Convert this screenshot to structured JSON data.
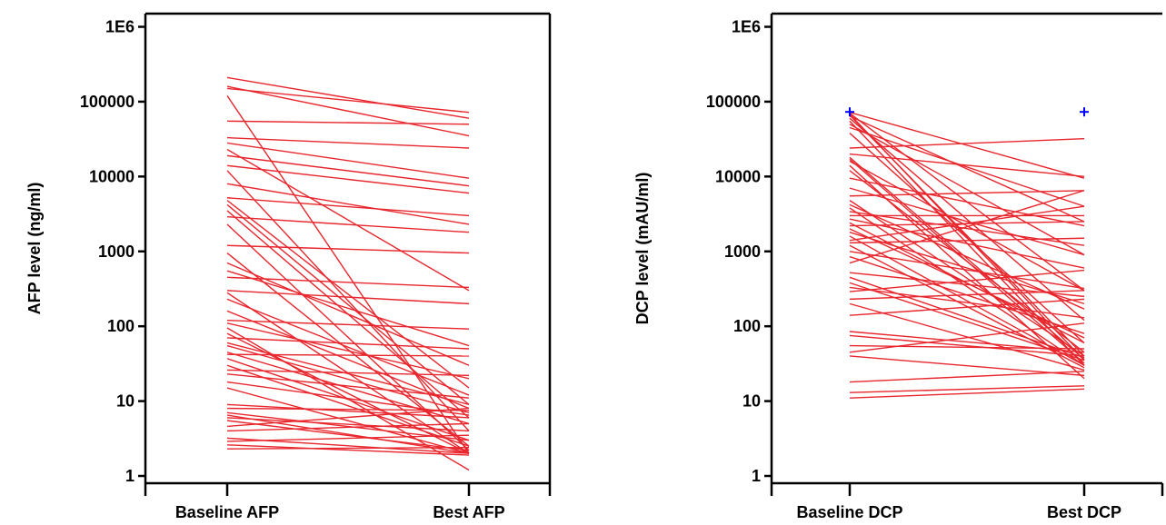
{
  "chart_data": [
    {
      "type": "line",
      "title": "",
      "xlabel": "",
      "ylabel": "AFP level (ng/ml)",
      "categories": [
        "Baseline AFP",
        "Best AFP"
      ],
      "yscale": "log",
      "ylim": [
        0.8,
        1500000
      ],
      "yticks": [
        1,
        10,
        100,
        1000,
        10000,
        100000,
        1000000
      ],
      "ytick_labels": [
        "1",
        "10",
        "100",
        "1000",
        "10000",
        "100000",
        "1E6"
      ],
      "grid": false,
      "line_color": "#e8262d",
      "pairs": [
        [
          210000,
          60000
        ],
        [
          160000,
          35000
        ],
        [
          150000,
          72000
        ],
        [
          120000,
          2.0
        ],
        [
          55000,
          50000
        ],
        [
          33000,
          24000
        ],
        [
          28000,
          9500
        ],
        [
          23000,
          300
        ],
        [
          19000,
          7500
        ],
        [
          14000,
          6000
        ],
        [
          12000,
          4.0
        ],
        [
          8000,
          2300
        ],
        [
          5200,
          3000
        ],
        [
          4800,
          15
        ],
        [
          4200,
          9
        ],
        [
          3500,
          6
        ],
        [
          2900,
          1800
        ],
        [
          2300,
          2.2
        ],
        [
          1200,
          950
        ],
        [
          950,
          2.5
        ],
        [
          700,
          30
        ],
        [
          550,
          55
        ],
        [
          450,
          330
        ],
        [
          300,
          200
        ],
        [
          280,
          2.0
        ],
        [
          230,
          12
        ],
        [
          160,
          8
        ],
        [
          120,
          92
        ],
        [
          110,
          20
        ],
        [
          95,
          1.2
        ],
        [
          80,
          2.0
        ],
        [
          70,
          50
        ],
        [
          60,
          9
        ],
        [
          55,
          7
        ],
        [
          45,
          5
        ],
        [
          42,
          40
        ],
        [
          37,
          3
        ],
        [
          30,
          2.5
        ],
        [
          26,
          22
        ],
        [
          23,
          11
        ],
        [
          18,
          6.5
        ],
        [
          15,
          2.0
        ],
        [
          9,
          6
        ],
        [
          8,
          7.5
        ],
        [
          7,
          3
        ],
        [
          6.5,
          2.0
        ],
        [
          6,
          4
        ],
        [
          5.5,
          2.2
        ],
        [
          4.6,
          8
        ],
        [
          4,
          5
        ],
        [
          3.2,
          2.0
        ],
        [
          2.9,
          3.5
        ],
        [
          2.6,
          1.9
        ],
        [
          2.3,
          2.4
        ]
      ]
    },
    {
      "type": "line",
      "title": "",
      "xlabel": "",
      "ylabel": "DCP level (mAU/ml)",
      "categories": [
        "Baseline DCP",
        "Best DCP"
      ],
      "yscale": "log",
      "ylim": [
        0.8,
        1500000
      ],
      "yticks": [
        1,
        10,
        100,
        1000,
        10000,
        100000,
        1000000
      ],
      "ytick_labels": [
        "1",
        "10",
        "100",
        "1000",
        "10000",
        "100000",
        "1E6"
      ],
      "grid": false,
      "line_color": "#e8262d",
      "marker_color": "#0000ff",
      "markers": [
        {
          "category": "Baseline DCP",
          "value": 73000
        },
        {
          "category": "Best DCP",
          "value": 73000
        }
      ],
      "pairs": [
        [
          72000,
          9500
        ],
        [
          70000,
          300
        ],
        [
          68000,
          35
        ],
        [
          66000,
          40
        ],
        [
          64000,
          2500
        ],
        [
          60000,
          120
        ],
        [
          55000,
          30
        ],
        [
          50000,
          900
        ],
        [
          45000,
          4000
        ],
        [
          38000,
          60
        ],
        [
          24000,
          32000
        ],
        [
          20000,
          10000
        ],
        [
          18000,
          36
        ],
        [
          17000,
          32
        ],
        [
          16000,
          300
        ],
        [
          14000,
          20
        ],
        [
          12000,
          45
        ],
        [
          9500,
          2200
        ],
        [
          7000,
          900
        ],
        [
          5500,
          6500
        ],
        [
          4800,
          40
        ],
        [
          4200,
          170
        ],
        [
          3800,
          30
        ],
        [
          3400,
          1200
        ],
        [
          3000,
          3000
        ],
        [
          2700,
          600
        ],
        [
          2400,
          60
        ],
        [
          2200,
          2500
        ],
        [
          2000,
          70
        ],
        [
          1800,
          200
        ],
        [
          1600,
          30
        ],
        [
          1400,
          4000
        ],
        [
          1300,
          1500
        ],
        [
          1200,
          28
        ],
        [
          1000,
          320
        ],
        [
          850,
          80
        ],
        [
          700,
          6500
        ],
        [
          520,
          250
        ],
        [
          450,
          38
        ],
        [
          380,
          35
        ],
        [
          330,
          130
        ],
        [
          290,
          560
        ],
        [
          230,
          300
        ],
        [
          200,
          26
        ],
        [
          140,
          230
        ],
        [
          85,
          45
        ],
        [
          75,
          40
        ],
        [
          55,
          50
        ],
        [
          45,
          110
        ],
        [
          40,
          22
        ],
        [
          18,
          25
        ],
        [
          13,
          16
        ],
        [
          11,
          14.5
        ]
      ]
    }
  ]
}
